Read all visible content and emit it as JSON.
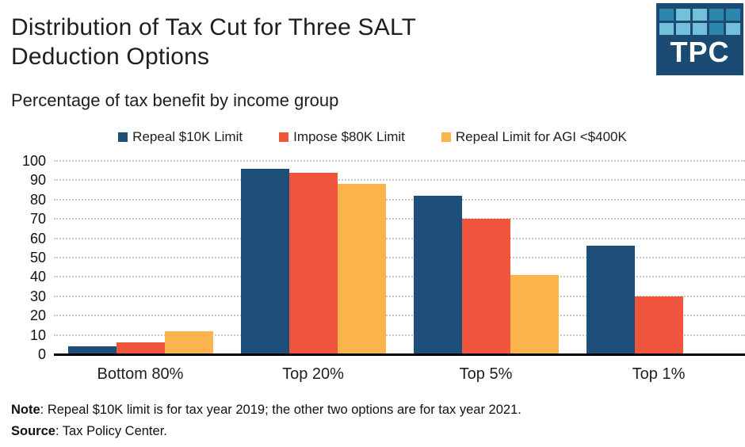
{
  "header": {
    "title": "Distribution of Tax Cut for Three SALT Deduction Options",
    "title_lines": [
      "Distribution of Tax Cut for Three SALT",
      "Deduction Options"
    ],
    "subtitle": "Percentage of tax benefit by income group"
  },
  "logo": {
    "text": "TPC",
    "bg_color": "#1b4a73",
    "square_colors": [
      [
        "#2d86ae",
        "#74c0d8",
        "#74c0d8",
        "#2d86ae",
        "#2d86ae"
      ],
      [
        "#74c0d8",
        "#74c0d8",
        "#74c0d8",
        "#2d86ae",
        "#74c0d8"
      ]
    ]
  },
  "chart_data": {
    "type": "bar",
    "title": "Distribution of Tax Cut for Three SALT Deduction Options",
    "subtitle": "Percentage of tax benefit by income group",
    "categories": [
      "Bottom 80%",
      "Top 20%",
      "Top 5%",
      "Top 1%"
    ],
    "series": [
      {
        "name": "Repeal $10K Limit",
        "color": "#1e4e7a",
        "values": [
          4,
          96,
          82,
          56
        ]
      },
      {
        "name": "Impose $80K Limit",
        "color": "#f0563e",
        "values": [
          6,
          94,
          70,
          30
        ]
      },
      {
        "name": "Repeal Limit for AGI <$400K",
        "color": "#fbb44c",
        "values": [
          12,
          88,
          41,
          0
        ]
      }
    ],
    "ylim": [
      0,
      100
    ],
    "yticks": [
      0,
      10,
      20,
      30,
      40,
      50,
      60,
      70,
      80,
      90,
      100
    ],
    "xlabel": "",
    "ylabel": "",
    "grid": "horizontal-dotted",
    "legend_position": "top-center"
  },
  "footer": {
    "note_label": "Note",
    "note_text": ": Repeal $10K limit is for tax year 2019; the other two options are for tax year 2021.",
    "source_label": "Source",
    "source_text": ": Tax Policy Center."
  }
}
